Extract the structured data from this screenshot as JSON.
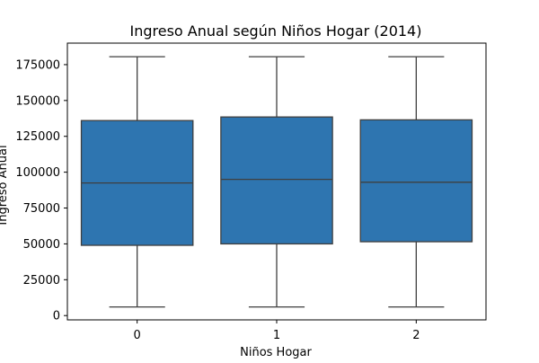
{
  "chart_data": {
    "type": "box",
    "title": "Ingreso Anual según Niños Hogar (2014)",
    "xlabel": "Niños Hogar",
    "ylabel": "Ingreso Anual",
    "ylim": [
      -3000,
      190000
    ],
    "yticks": [
      0,
      25000,
      50000,
      75000,
      100000,
      125000,
      150000,
      175000
    ],
    "ytick_labels": [
      "0",
      "25000",
      "50000",
      "75000",
      "100000",
      "125000",
      "150000",
      "175000"
    ],
    "categories": [
      "0",
      "1",
      "2"
    ],
    "boxes": [
      {
        "category": "0",
        "whisker_low": 6000,
        "q1": 49000,
        "median": 92500,
        "q3": 136000,
        "whisker_high": 180500
      },
      {
        "category": "1",
        "whisker_low": 6000,
        "q1": 50000,
        "median": 95000,
        "q3": 138500,
        "whisker_high": 180500
      },
      {
        "category": "2",
        "whisker_low": 6000,
        "q1": 51500,
        "median": 93000,
        "q3": 136500,
        "whisker_high": 180500
      }
    ],
    "box_color": "#2e75b0",
    "line_color": "#3f3f3f",
    "grid": false,
    "legend": "none"
  }
}
